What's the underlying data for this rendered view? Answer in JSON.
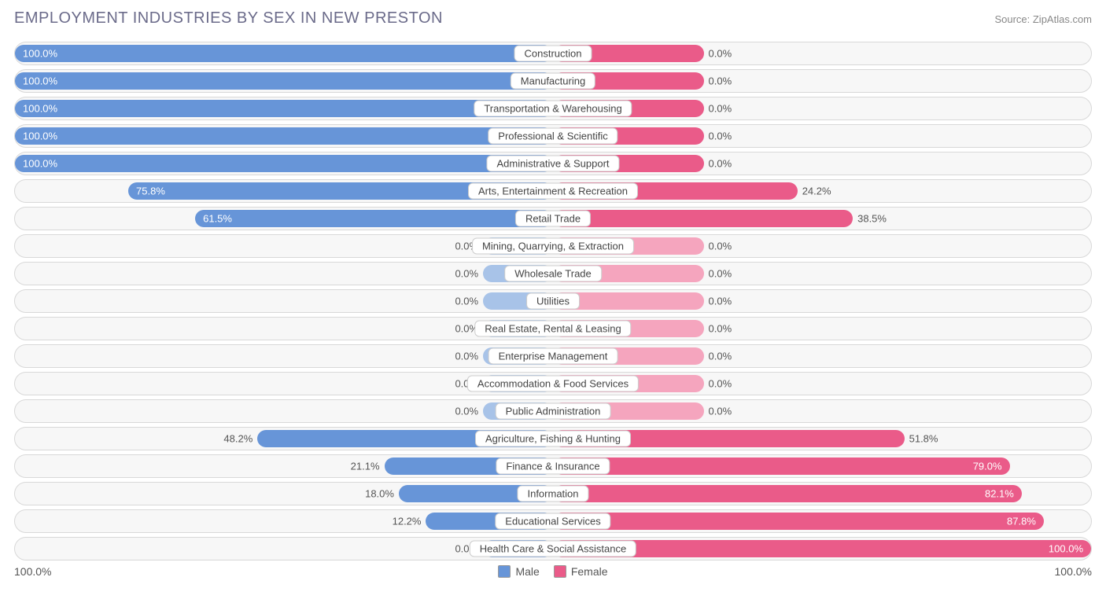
{
  "title": "EMPLOYMENT INDUSTRIES BY SEX IN NEW PRESTON",
  "source": "Source: ZipAtlas.com",
  "axis_left": "100.0%",
  "axis_right": "100.0%",
  "legend": {
    "male": "Male",
    "female": "Female"
  },
  "colors": {
    "male": "#6795d8",
    "male_dim": "#a8c3e8",
    "female": "#ea5b89",
    "female_dim": "#f5a5be",
    "row_bg": "#f7f7f7",
    "row_border": "#d8d8d8",
    "title": "#6b6b8a"
  },
  "chart": {
    "type": "diverging-bar",
    "male_base_width_pct": 13,
    "female_base_width_pct": 28,
    "rows": [
      {
        "label": "Construction",
        "male": 100.0,
        "female": 0.0,
        "male_label": "100.0%",
        "female_label": "0.0%",
        "dim": false
      },
      {
        "label": "Manufacturing",
        "male": 100.0,
        "female": 0.0,
        "male_label": "100.0%",
        "female_label": "0.0%",
        "dim": false
      },
      {
        "label": "Transportation & Warehousing",
        "male": 100.0,
        "female": 0.0,
        "male_label": "100.0%",
        "female_label": "0.0%",
        "dim": false
      },
      {
        "label": "Professional & Scientific",
        "male": 100.0,
        "female": 0.0,
        "male_label": "100.0%",
        "female_label": "0.0%",
        "dim": false
      },
      {
        "label": "Administrative & Support",
        "male": 100.0,
        "female": 0.0,
        "male_label": "100.0%",
        "female_label": "0.0%",
        "dim": false
      },
      {
        "label": "Arts, Entertainment & Recreation",
        "male": 75.8,
        "female": 24.2,
        "male_label": "75.8%",
        "female_label": "24.2%",
        "dim": false
      },
      {
        "label": "Retail Trade",
        "male": 61.5,
        "female": 38.5,
        "male_label": "61.5%",
        "female_label": "38.5%",
        "dim": false
      },
      {
        "label": "Mining, Quarrying, & Extraction",
        "male": 0.0,
        "female": 0.0,
        "male_label": "0.0%",
        "female_label": "0.0%",
        "dim": true
      },
      {
        "label": "Wholesale Trade",
        "male": 0.0,
        "female": 0.0,
        "male_label": "0.0%",
        "female_label": "0.0%",
        "dim": true
      },
      {
        "label": "Utilities",
        "male": 0.0,
        "female": 0.0,
        "male_label": "0.0%",
        "female_label": "0.0%",
        "dim": true
      },
      {
        "label": "Real Estate, Rental & Leasing",
        "male": 0.0,
        "female": 0.0,
        "male_label": "0.0%",
        "female_label": "0.0%",
        "dim": true
      },
      {
        "label": "Enterprise Management",
        "male": 0.0,
        "female": 0.0,
        "male_label": "0.0%",
        "female_label": "0.0%",
        "dim": true
      },
      {
        "label": "Accommodation & Food Services",
        "male": 0.0,
        "female": 0.0,
        "male_label": "0.0%",
        "female_label": "0.0%",
        "dim": true
      },
      {
        "label": "Public Administration",
        "male": 0.0,
        "female": 0.0,
        "male_label": "0.0%",
        "female_label": "0.0%",
        "dim": true
      },
      {
        "label": "Agriculture, Fishing & Hunting",
        "male": 48.2,
        "female": 51.8,
        "male_label": "48.2%",
        "female_label": "51.8%",
        "dim": false
      },
      {
        "label": "Finance & Insurance",
        "male": 21.1,
        "female": 79.0,
        "male_label": "21.1%",
        "female_label": "79.0%",
        "dim": false
      },
      {
        "label": "Information",
        "male": 18.0,
        "female": 82.1,
        "male_label": "18.0%",
        "female_label": "82.1%",
        "dim": false
      },
      {
        "label": "Educational Services",
        "male": 12.2,
        "female": 87.8,
        "male_label": "12.2%",
        "female_label": "87.8%",
        "dim": false
      },
      {
        "label": "Health Care & Social Assistance",
        "male": 0.0,
        "female": 100.0,
        "male_label": "0.0%",
        "female_label": "100.0%",
        "dim": false
      }
    ]
  }
}
